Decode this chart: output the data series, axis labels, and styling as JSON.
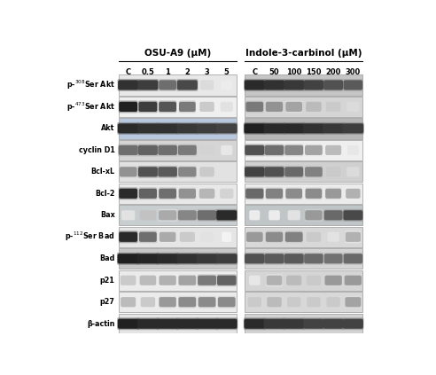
{
  "title_left": "OSU-A9 (μM)",
  "title_right": "Indole-3-carbinol (μM)",
  "labels_left": [
    "C",
    "0.5",
    "1",
    "2",
    "3",
    "5"
  ],
  "labels_right": [
    "C",
    "50",
    "100",
    "150",
    "200",
    "300"
  ],
  "row_label_texts": [
    [
      "p-",
      "308",
      "Ser Akt"
    ],
    [
      "p-",
      "473",
      "Ser Akt"
    ],
    [
      "Akt",
      "",
      ""
    ],
    [
      "cyclin D1",
      "",
      ""
    ],
    [
      "Bcl-xL",
      "",
      ""
    ],
    [
      "Bcl-2",
      "",
      ""
    ],
    [
      "Bax",
      "",
      ""
    ],
    [
      "p-",
      "112",
      "Ser Bad"
    ],
    [
      "Bad",
      "",
      ""
    ],
    [
      "p21",
      "",
      ""
    ],
    [
      "p27",
      "",
      ""
    ],
    [
      "β-actin",
      "",
      ""
    ]
  ],
  "bg_color": "#ffffff",
  "num_rows": 12,
  "num_cols": 6,
  "left_panel_bg": [
    "#e8e8e8",
    "#efefef",
    "#b8c8de",
    "#d5d5d5",
    "#e2e2e2",
    "#e8e8e8",
    "#c8cdd0",
    "#e5e5e5",
    "#c8c8c8",
    "#ebebeb",
    "#ebebeb",
    "#e5e5e5"
  ],
  "right_panel_bg": [
    "#c5c5c5",
    "#d5d5d5",
    "#b8b8b8",
    "#efefef",
    "#d0d0d0",
    "#ebebeb",
    "#c0c5c8",
    "#d8d8d8",
    "#d5d5d5",
    "#d5d5d5",
    "#d8d8d8",
    "#d2d2d2"
  ],
  "band_intensities_left": [
    [
      0.85,
      0.8,
      0.6,
      0.75,
      0.15,
      0.08
    ],
    [
      0.92,
      0.8,
      0.7,
      0.55,
      0.22,
      0.12
    ],
    [
      0.88,
      0.85,
      0.85,
      0.82,
      0.8,
      0.78
    ],
    [
      0.6,
      0.65,
      0.6,
      0.55,
      0.18,
      0.1
    ],
    [
      0.45,
      0.72,
      0.68,
      0.5,
      0.22,
      0.12
    ],
    [
      0.88,
      0.65,
      0.6,
      0.45,
      0.3,
      0.18
    ],
    [
      0.12,
      0.25,
      0.35,
      0.5,
      0.6,
      0.88
    ],
    [
      0.88,
      0.6,
      0.35,
      0.22,
      0.12,
      0.05
    ],
    [
      0.92,
      0.9,
      0.88,
      0.85,
      0.82,
      0.8
    ],
    [
      0.22,
      0.28,
      0.32,
      0.38,
      0.55,
      0.65
    ],
    [
      0.28,
      0.22,
      0.42,
      0.48,
      0.48,
      0.48
    ],
    [
      0.92,
      0.88,
      0.88,
      0.88,
      0.88,
      0.88
    ]
  ],
  "band_intensities_right": [
    [
      0.88,
      0.85,
      0.82,
      0.78,
      0.72,
      0.68
    ],
    [
      0.55,
      0.45,
      0.38,
      0.28,
      0.22,
      0.15
    ],
    [
      0.92,
      0.88,
      0.88,
      0.85,
      0.82,
      0.8
    ],
    [
      0.72,
      0.6,
      0.5,
      0.38,
      0.28,
      0.1
    ],
    [
      0.78,
      0.72,
      0.62,
      0.52,
      0.22,
      0.15
    ],
    [
      0.62,
      0.52,
      0.48,
      0.48,
      0.42,
      0.32
    ],
    [
      0.08,
      0.08,
      0.12,
      0.42,
      0.62,
      0.75
    ],
    [
      0.42,
      0.48,
      0.52,
      0.22,
      0.12,
      0.32
    ],
    [
      0.72,
      0.68,
      0.68,
      0.62,
      0.58,
      0.62
    ],
    [
      0.1,
      0.32,
      0.28,
      0.22,
      0.42,
      0.42
    ],
    [
      0.22,
      0.28,
      0.22,
      0.22,
      0.22,
      0.38
    ],
    [
      0.88,
      0.82,
      0.82,
      0.78,
      0.78,
      0.78
    ]
  ],
  "band_widths_left": [
    [
      0.85,
      0.85,
      0.7,
      0.85,
      0.5,
      0.4
    ],
    [
      0.75,
      0.75,
      0.7,
      0.65,
      0.55,
      0.45
    ],
    [
      0.88,
      0.88,
      0.88,
      0.88,
      0.88,
      0.88
    ],
    [
      0.8,
      0.8,
      0.78,
      0.75,
      0.55,
      0.4
    ],
    [
      0.7,
      0.8,
      0.78,
      0.72,
      0.55,
      0.4
    ],
    [
      0.75,
      0.72,
      0.7,
      0.68,
      0.6,
      0.5
    ],
    [
      0.5,
      0.65,
      0.72,
      0.75,
      0.78,
      0.85
    ],
    [
      0.75,
      0.7,
      0.65,
      0.58,
      0.45,
      0.3
    ],
    [
      0.9,
      0.9,
      0.9,
      0.88,
      0.88,
      0.88
    ],
    [
      0.6,
      0.65,
      0.68,
      0.7,
      0.75,
      0.78
    ],
    [
      0.58,
      0.55,
      0.68,
      0.7,
      0.7,
      0.7
    ],
    [
      0.88,
      0.88,
      0.88,
      0.88,
      0.88,
      0.88
    ]
  ],
  "band_widths_right": [
    [
      0.85,
      0.85,
      0.85,
      0.82,
      0.8,
      0.78
    ],
    [
      0.7,
      0.68,
      0.65,
      0.6,
      0.55,
      0.45
    ],
    [
      0.88,
      0.88,
      0.88,
      0.88,
      0.88,
      0.88
    ],
    [
      0.8,
      0.78,
      0.75,
      0.7,
      0.62,
      0.38
    ],
    [
      0.82,
      0.8,
      0.75,
      0.7,
      0.55,
      0.45
    ],
    [
      0.72,
      0.68,
      0.65,
      0.65,
      0.62,
      0.55
    ],
    [
      0.35,
      0.38,
      0.45,
      0.68,
      0.75,
      0.8
    ],
    [
      0.65,
      0.68,
      0.7,
      0.55,
      0.42,
      0.58
    ],
    [
      0.82,
      0.8,
      0.8,
      0.78,
      0.75,
      0.78
    ],
    [
      0.38,
      0.6,
      0.58,
      0.55,
      0.68,
      0.68
    ],
    [
      0.5,
      0.55,
      0.5,
      0.5,
      0.5,
      0.62
    ],
    [
      0.88,
      0.88,
      0.88,
      0.85,
      0.85,
      0.85
    ]
  ]
}
